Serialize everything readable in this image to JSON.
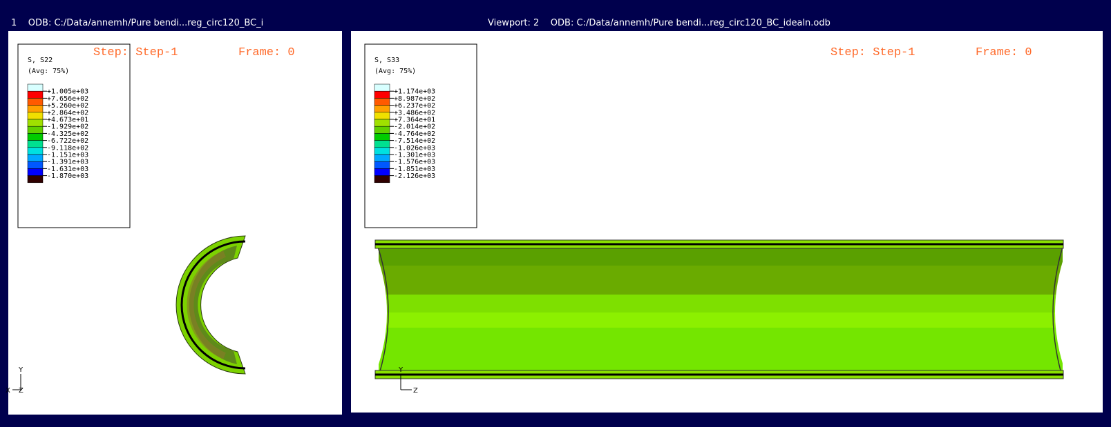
{
  "viewports": [
    {
      "title": "1    ODB: C:/Data/annemh/Pure bendi...reg_circ120_BC_i",
      "step": "Step: Step-1",
      "frame": "Frame: 0",
      "legend": {
        "variable": "S, S22",
        "averaging": "(Avg: 75%)",
        "values": [
          "+1.005e+03",
          "+7.656e+02",
          "+5.260e+02",
          "+2.864e+02",
          "+4.673e+01",
          "-1.929e+02",
          "-4.325e+02",
          "-6.722e+02",
          "-9.118e+02",
          "-1.151e+03",
          "-1.391e+03",
          "-1.631e+03",
          "-1.870e+03"
        ]
      },
      "triad": {
        "up": "Y",
        "side": "X",
        "origin": "Z"
      }
    },
    {
      "title": "Viewport: 2    ODB: C:/Data/annemh/Pure bendi...reg_circ120_BC_idealn.odb",
      "step": "Step: Step-1",
      "frame": "Frame: 0",
      "legend": {
        "variable": "S, S33",
        "averaging": "(Avg: 75%)",
        "values": [
          "+1.174e+03",
          "+8.987e+02",
          "+6.237e+02",
          "+3.486e+02",
          "+7.364e+01",
          "-2.014e+02",
          "-4.764e+02",
          "-7.514e+02",
          "-1.026e+03",
          "-1.301e+03",
          "-1.576e+03",
          "-1.851e+03",
          "-2.126e+03"
        ]
      },
      "triad": {
        "up": "Y",
        "side": "Z"
      }
    }
  ]
}
